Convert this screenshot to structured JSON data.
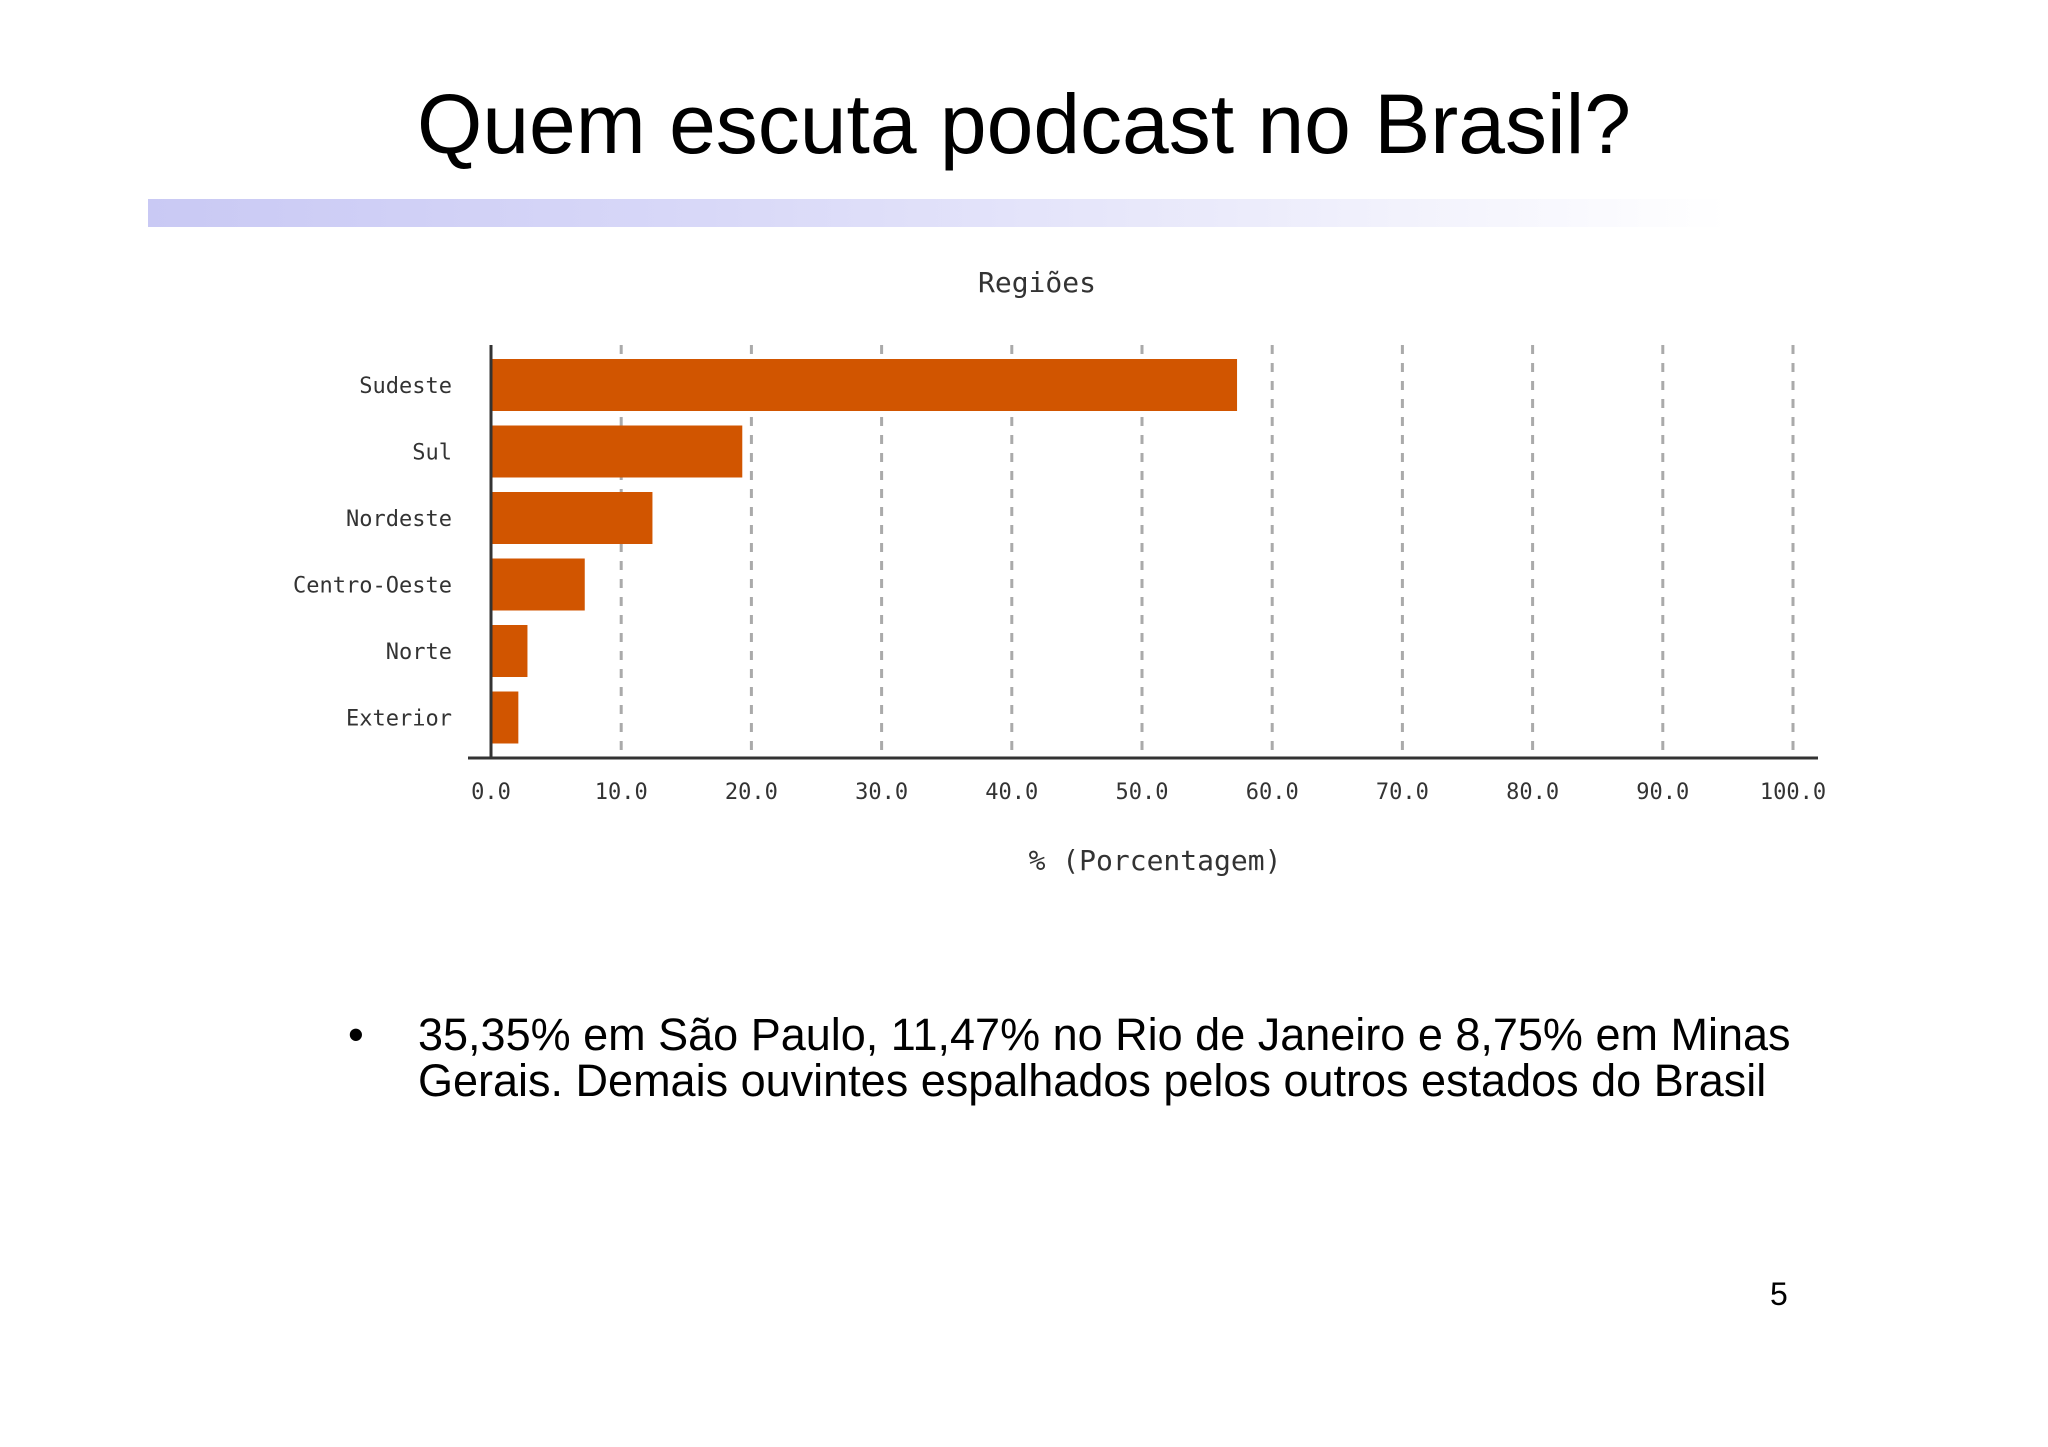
{
  "slide": {
    "title": "Quem escuta podcast no Brasil?",
    "bullet_symbol": "•",
    "bullet_text": "35,35% em São Paulo, 11,47% no Rio de Janeiro e 8,75% em Minas Gerais. Demais ouvintes espalhados pelos outros estados do Brasil",
    "page_number": "5"
  },
  "colors": {
    "bar": "#d15500",
    "title_bar": "#c9c9f4",
    "grid": "#aaaaaa",
    "axis": "#333333"
  },
  "chart_data": {
    "type": "bar",
    "orientation": "horizontal",
    "title": "Regiões",
    "xlabel": "% (Porcentagem)",
    "ylabel": "",
    "categories": [
      "Sudeste",
      "Sul",
      "Nordeste",
      "Centro-Oeste",
      "Norte",
      "Exterior"
    ],
    "values": [
      57.3,
      19.3,
      12.4,
      7.2,
      2.8,
      2.1
    ],
    "xlim": [
      0,
      100
    ],
    "x_ticks": [
      "0.0",
      "10.0",
      "20.0",
      "30.0",
      "40.0",
      "50.0",
      "60.0",
      "70.0",
      "80.0",
      "90.0",
      "100.0"
    ],
    "grid": true,
    "grid_style": "dashed vertical"
  }
}
